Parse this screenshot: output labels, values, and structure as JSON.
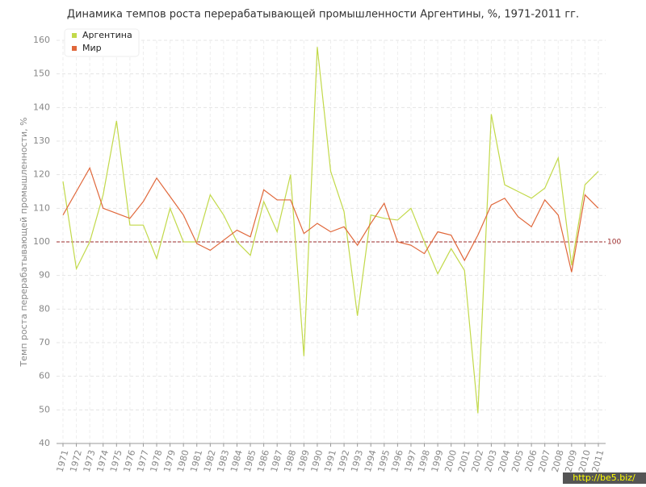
{
  "chart_data": {
    "type": "line",
    "title": "Динамика темпов роста перерабатывающей промышленности Аргентины, %, 1971-2011 гг.",
    "y_label": "Темп роста перерабатывающей промышленности, %",
    "categories": [
      "1971",
      "1972",
      "1973",
      "1974",
      "1975",
      "1976",
      "1977",
      "1978",
      "1979",
      "1980",
      "1981",
      "1982",
      "1983",
      "1984",
      "1985",
      "1986",
      "1987",
      "1988",
      "1989",
      "1990",
      "1991",
      "1992",
      "1993",
      "1994",
      "1995",
      "1996",
      "1997",
      "1998",
      "1999",
      "2000",
      "2001",
      "2002",
      "2003",
      "2004",
      "2005",
      "2006",
      "2007",
      "2008",
      "2009",
      "2010",
      "2011"
    ],
    "series": [
      {
        "name": "Аргентина",
        "color": "#c2d94a",
        "values": [
          118,
          92,
          100,
          114,
          136,
          105,
          105,
          95,
          110,
          100,
          100,
          114,
          108,
          100,
          96,
          112,
          103,
          120,
          66,
          158,
          121,
          109,
          78,
          108,
          107,
          106.5,
          110,
          100,
          90.5,
          98,
          91.5,
          49,
          138,
          117,
          115,
          113,
          116,
          125,
          93,
          117,
          121
        ]
      },
      {
        "name": "Мир",
        "color": "#e0673a",
        "values": [
          108,
          115,
          122,
          110,
          108.5,
          107,
          112,
          119,
          113.5,
          108,
          99.5,
          97.5,
          100.5,
          103.5,
          101.5,
          115.5,
          112.5,
          112.5,
          102.5,
          105.5,
          103,
          104.5,
          99,
          105.5,
          111.5,
          100,
          99,
          96.5,
          103,
          102,
          94.5,
          102,
          111,
          113,
          107.5,
          104.5,
          112.5,
          108,
          91,
          114,
          110
        ]
      }
    ],
    "reference_line": 100,
    "reference_color": "#9b2a2a",
    "ylim": [
      40,
      160
    ],
    "yticks": [
      40,
      50,
      60,
      70,
      80,
      90,
      100,
      110,
      120,
      130,
      140,
      150,
      160
    ],
    "grid": true,
    "legend": "top-left",
    "watermark": "http://be5.biz/"
  }
}
